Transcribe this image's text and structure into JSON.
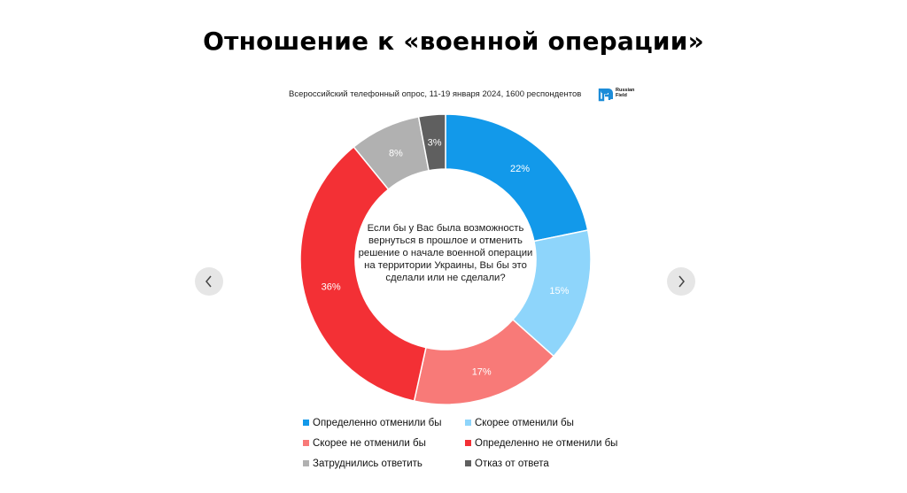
{
  "header": {
    "title": "Отношение к «военной операции»",
    "subtitle": "Всероссийский телефонный опрос, 11-19 января 2024, 1600 респондентов",
    "logo_text": [
      "Russian",
      "Field"
    ]
  },
  "nav": {
    "prev_icon": "chevron-left-icon",
    "next_icon": "chevron-right-icon"
  },
  "chart_data": {
    "type": "pie",
    "donut": true,
    "center_text": "Если бы у Вас была возможность вернуться в прошлое и отменить решение о начале военной операции на территории Украины, Вы бы это сделали или не сделали?",
    "slices": [
      {
        "label": "Определенно отменили бы",
        "value": 22,
        "display": "22%",
        "color": "#1299ea"
      },
      {
        "label": "Скорее отменили бы",
        "value": 15,
        "display": "15%",
        "color": "#8ed5fb"
      },
      {
        "label": "Скорее не отменили бы",
        "value": 17,
        "display": "17%",
        "color": "#f87a78"
      },
      {
        "label": "Определенно не отменили бы",
        "value": 36,
        "display": "36%",
        "color": "#f33035"
      },
      {
        "label": "Затруднились ответить",
        "value": 8,
        "display": "8%",
        "color": "#b1b1b1"
      },
      {
        "label": "Отказ от ответа",
        "value": 3,
        "display": "3%",
        "color": "#5f5f5f"
      }
    ],
    "legend_position": "bottom"
  },
  "legend": [
    {
      "label": "Определенно отменили бы",
      "color": "#1299ea"
    },
    {
      "label": "Скорее отменили бы",
      "color": "#8ed5fb"
    },
    {
      "label": "Скорее не отменили бы",
      "color": "#f87a78"
    },
    {
      "label": "Определенно не отменили бы",
      "color": "#f33035"
    },
    {
      "label": "Затруднились ответить",
      "color": "#b1b1b1"
    },
    {
      "label": "Отказ от ответа",
      "color": "#5f5f5f"
    }
  ]
}
